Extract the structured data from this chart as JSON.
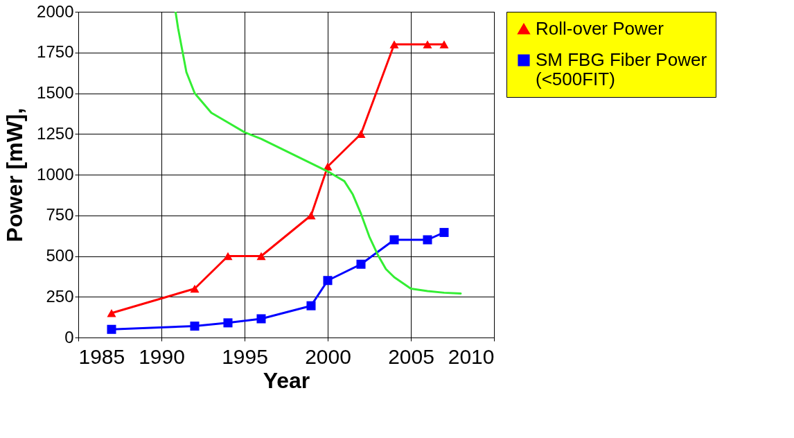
{
  "chart_data": {
    "type": "line",
    "xlabel": "Year",
    "ylabel": "Power [mW],",
    "xlim": [
      1985,
      2010
    ],
    "xticks": [
      1985,
      1990,
      1995,
      2000,
      2005,
      2010
    ],
    "ylim": [
      0,
      2000
    ],
    "yticks": [
      0,
      250,
      500,
      750,
      1000,
      1250,
      1500,
      1750,
      2000
    ],
    "grid": true,
    "legend": "right",
    "series": [
      {
        "name": "Roll-over Power",
        "color": "#ff0000",
        "marker": "triangle",
        "x": [
          1987,
          1992,
          1994,
          1996,
          1999,
          2000,
          2002,
          2004,
          2006,
          2007
        ],
        "values": [
          150,
          300,
          500,
          500,
          750,
          1050,
          1250,
          1800,
          1800,
          1800
        ]
      },
      {
        "name": "SM FBG Fiber Power (<500FIT)",
        "color": "#0000ff",
        "marker": "square",
        "x": [
          1987,
          1992,
          1994,
          1996,
          1999,
          2000,
          2002,
          2004,
          2006,
          2007
        ],
        "values": [
          50,
          70,
          90,
          115,
          195,
          350,
          450,
          600,
          600,
          645
        ]
      },
      {
        "color": "#33ee33",
        "marker": "none",
        "x": [
          1990.85,
          1991,
          1991.5,
          1992,
          1993,
          1994,
          1995,
          1996,
          1997,
          1998,
          1999,
          2000,
          2001,
          2001.5,
          2002,
          2002.5,
          2003,
          2003.5,
          2004,
          2005,
          2006,
          2007,
          2008
        ],
        "values": [
          2000,
          1900,
          1630,
          1500,
          1380,
          1320,
          1260,
          1220,
          1170,
          1120,
          1070,
          1020,
          960,
          880,
          760,
          620,
          510,
          420,
          370,
          300,
          285,
          275,
          270
        ]
      }
    ]
  }
}
